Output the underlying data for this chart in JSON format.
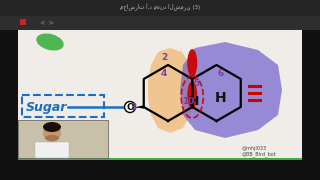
{
  "bg_color": "#1a1a1a",
  "whiteboard_color": "#f0ede8",
  "sugar_color": "#1a6fc4",
  "sugar_text": "Sugar",
  "number_color": "#7b3fa0",
  "dashed_box_color": "#1a6fc4",
  "orange_fill": "#f0b060",
  "purple_fill": "#7060cc",
  "red_shape": "#cc0000",
  "green_blob_color": "#3cb043",
  "bottom_bar_color": "#3cb043",
  "instagram_text": "@mhjl033",
  "telegram_text": "@BB_Bird_bot",
  "title_text": "محاضرات أ.د مهند الشمري (3)"
}
